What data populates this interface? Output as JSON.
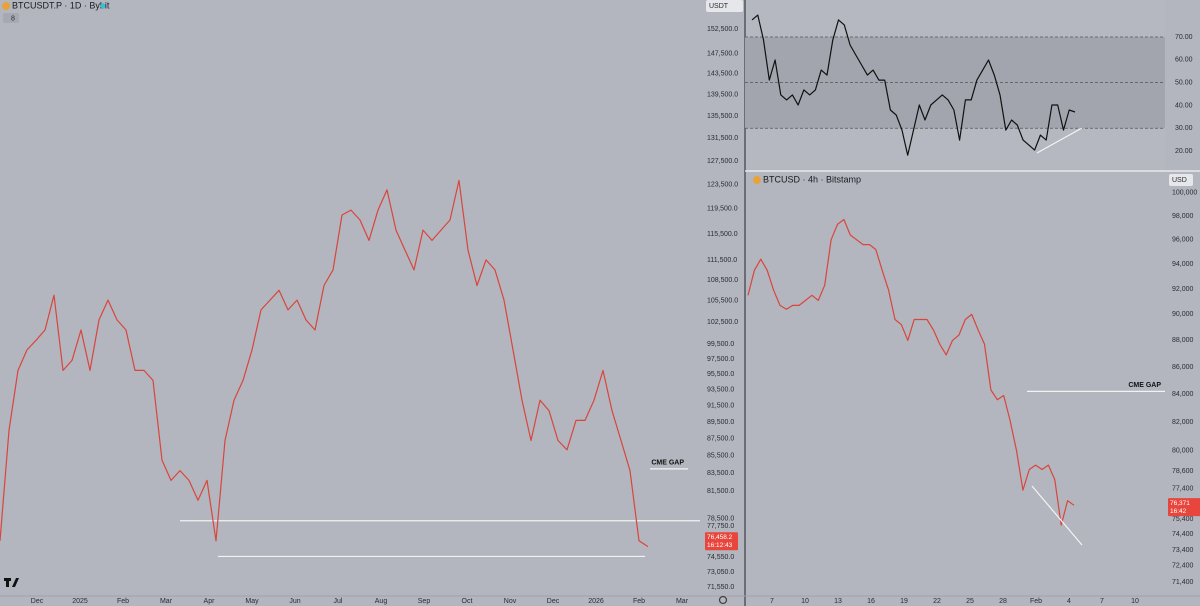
{
  "chart_data": [
    {
      "type": "line",
      "title": "BTCUSDT.P · 1D · Bybit",
      "indicators": "8",
      "currency": "USDT",
      "log_scale": true,
      "color": "#d9453c",
      "values": [
        76200,
        88500,
        96000,
        98700,
        100000,
        101400,
        106300,
        96000,
        97300,
        101400,
        96000,
        102800,
        105600,
        102800,
        101400,
        96000,
        96000,
        94700,
        85000,
        82700,
        83800,
        82700,
        80500,
        82700,
        76200,
        87300,
        92200,
        94700,
        98700,
        104200,
        105600,
        107000,
        104200,
        105600,
        102800,
        101400,
        107700,
        110000,
        118500,
        119300,
        117700,
        114500,
        119300,
        122600,
        116100,
        113000,
        110000,
        116100,
        114500,
        116100,
        117700,
        124200,
        113000,
        107700,
        111500,
        110000,
        105600,
        98700,
        92200,
        87300,
        92200,
        90900,
        87300,
        86200,
        89700,
        89700,
        92200,
        96000,
        90900,
        87300,
        83800,
        76200,
        75600
      ],
      "ylim": [
        70800,
        158600
      ],
      "yticks": [
        {
          "value": 152500,
          "label": "152,500.0"
        },
        {
          "value": 147500,
          "label": "147,500.0"
        },
        {
          "value": 143500,
          "label": "143,500.0"
        },
        {
          "value": 139500,
          "label": "139,500.0"
        },
        {
          "value": 135500,
          "label": "135,500.0"
        },
        {
          "value": 131500,
          "label": "131,500.0"
        },
        {
          "value": 127500,
          "label": "127,500.0"
        },
        {
          "value": 123500,
          "label": "123,500.0"
        },
        {
          "value": 119500,
          "label": "119,500.0"
        },
        {
          "value": 115500,
          "label": "115,500.0"
        },
        {
          "value": 111500,
          "label": "111,500.0"
        },
        {
          "value": 108500,
          "label": "108,500.0"
        },
        {
          "value": 105500,
          "label": "105,500.0"
        },
        {
          "value": 102500,
          "label": "102,500.0"
        },
        {
          "value": 99500,
          "label": "99,500.0"
        },
        {
          "value": 97500,
          "label": "97,500.0"
        },
        {
          "value": 95500,
          "label": "95,500.0"
        },
        {
          "value": 93500,
          "label": "93,500.0"
        },
        {
          "value": 91500,
          "label": "91,500.0"
        },
        {
          "value": 89500,
          "label": "89,500.0"
        },
        {
          "value": 87500,
          "label": "87,500.0"
        },
        {
          "value": 85500,
          "label": "85,500.0"
        },
        {
          "value": 83500,
          "label": "83,500.0"
        },
        {
          "value": 81500,
          "label": "81,500.0"
        },
        {
          "value": 78500,
          "label": "78,500.0"
        },
        {
          "value": 77750,
          "label": "77,750.0"
        },
        {
          "value": 74550,
          "label": "74,550.0"
        },
        {
          "value": 73050,
          "label": "73,050.0"
        },
        {
          "value": 71550,
          "label": "71,550.0"
        }
      ],
      "x_labels": [
        "Dec",
        "2025",
        "Feb",
        "Mar",
        "Apr",
        "May",
        "Jun",
        "Jul",
        "Aug",
        "Sep",
        "Oct",
        "Nov",
        "Dec",
        "2026",
        "Feb",
        "Mar"
      ],
      "levels": [
        78300,
        74600
      ],
      "annotations": [
        {
          "label": "CME GAP",
          "value": 84000
        }
      ],
      "price_tag": {
        "value": 76458.2,
        "label": "76,458.2",
        "countdown": "16:12:43"
      }
    },
    {
      "type": "line",
      "color": "#111111",
      "values": [
        77.5,
        79.6,
        68.7,
        51.1,
        59.9,
        44.6,
        42.4,
        44.6,
        40.2,
        46.8,
        44.6,
        46.8,
        55.5,
        53.3,
        68.7,
        77.5,
        75.3,
        66.5,
        62.1,
        57.7,
        53.3,
        55.5,
        51.1,
        51.1,
        38.0,
        35.8,
        29.2,
        18.2,
        29.2,
        40.2,
        33.6,
        40.2,
        42.4,
        44.6,
        42.4,
        38.0,
        24.8,
        42.4,
        42.4,
        51.1,
        55.5,
        59.9,
        53.3,
        44.6,
        29.2,
        33.6,
        31.4,
        24.8,
        22.6,
        20.4,
        27.0,
        24.8,
        40.2,
        40.2,
        29.2,
        38.0,
        37.1
      ],
      "ylim": [
        11.7,
        86.2
      ],
      "yticks": [
        {
          "value": 20,
          "label": "20.00"
        },
        {
          "value": 30,
          "label": "30.00"
        },
        {
          "value": 40,
          "label": "40.00"
        },
        {
          "value": 50,
          "label": "50.00"
        },
        {
          "value": 60,
          "label": "60.00"
        },
        {
          "value": 70,
          "label": "70.00"
        }
      ],
      "band": [
        30,
        70
      ],
      "levels": [
        30,
        50,
        70
      ]
    },
    {
      "type": "line",
      "title": "BTCUSD · 4h · Bitstamp",
      "currency": "USD",
      "log_scale": true,
      "color": "#d9453c",
      "values": [
        91500,
        93500,
        94400,
        93500,
        91900,
        90700,
        90400,
        90700,
        90700,
        91100,
        91500,
        91100,
        92300,
        96000,
        97300,
        97700,
        96400,
        96000,
        95600,
        95600,
        95200,
        93500,
        91900,
        89600,
        89200,
        88000,
        89600,
        89600,
        89600,
        88800,
        87700,
        86900,
        88000,
        88400,
        89600,
        90000,
        88800,
        87700,
        84300,
        83600,
        83900,
        82100,
        80000,
        77300,
        78700,
        79000,
        78700,
        79000,
        78000,
        75000,
        76600,
        76300
      ],
      "ylim": [
        70600,
        101800
      ],
      "yticks": [
        {
          "value": 100000,
          "label": "100,000"
        },
        {
          "value": 98000,
          "label": "98,000"
        },
        {
          "value": 96000,
          "label": "96,000"
        },
        {
          "value": 94000,
          "label": "94,000"
        },
        {
          "value": 92000,
          "label": "92,000"
        },
        {
          "value": 90000,
          "label": "90,000"
        },
        {
          "value": 88000,
          "label": "88,000"
        },
        {
          "value": 86000,
          "label": "86,000"
        },
        {
          "value": 84000,
          "label": "84,000"
        },
        {
          "value": 82000,
          "label": "82,000"
        },
        {
          "value": 80000,
          "label": "80,000"
        },
        {
          "value": 78600,
          "label": "78,600"
        },
        {
          "value": 77400,
          "label": "77,400"
        },
        {
          "value": 75400,
          "label": "75,400"
        },
        {
          "value": 74400,
          "label": "74,400"
        },
        {
          "value": 73400,
          "label": "73,400"
        },
        {
          "value": 72400,
          "label": "72,400"
        },
        {
          "value": 71400,
          "label": "71,400"
        }
      ],
      "x_labels": [
        "7",
        "10",
        "13",
        "16",
        "19",
        "22",
        "25",
        "28",
        "Feb",
        "4",
        "7",
        "10"
      ],
      "annotations": [
        {
          "label": "CME GAP",
          "value": 84200
        }
      ],
      "price_tag": {
        "value": 76371,
        "label": "76,371",
        "countdown": "16:42"
      }
    }
  ]
}
